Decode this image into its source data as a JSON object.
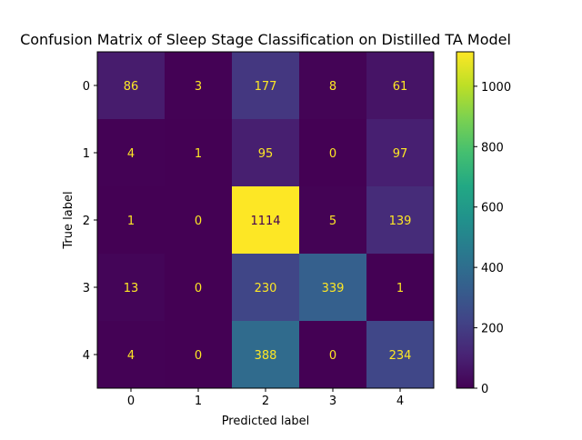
{
  "chart_data": {
    "type": "heatmap",
    "title": "Confusion Matrix of Sleep Stage Classification on Distilled TA Model",
    "xlabel": "Predicted label",
    "ylabel": "True label",
    "x_categories": [
      "0",
      "1",
      "2",
      "3",
      "4"
    ],
    "y_categories": [
      "0",
      "1",
      "2",
      "3",
      "4"
    ],
    "matrix": [
      [
        86,
        3,
        177,
        8,
        61
      ],
      [
        4,
        1,
        95,
        0,
        97
      ],
      [
        1,
        0,
        1114,
        5,
        139
      ],
      [
        13,
        0,
        230,
        339,
        1
      ],
      [
        4,
        0,
        388,
        0,
        234
      ]
    ],
    "colormap": "viridis",
    "color_range": [
      0,
      1114
    ],
    "colorbar_ticks": [
      "0",
      "200",
      "400",
      "600",
      "800",
      "1000"
    ],
    "colorbar_tick_values": [
      0,
      200,
      400,
      600,
      800,
      1000
    ],
    "text_color_low": "#fde725",
    "text_color_high": "#440154"
  }
}
